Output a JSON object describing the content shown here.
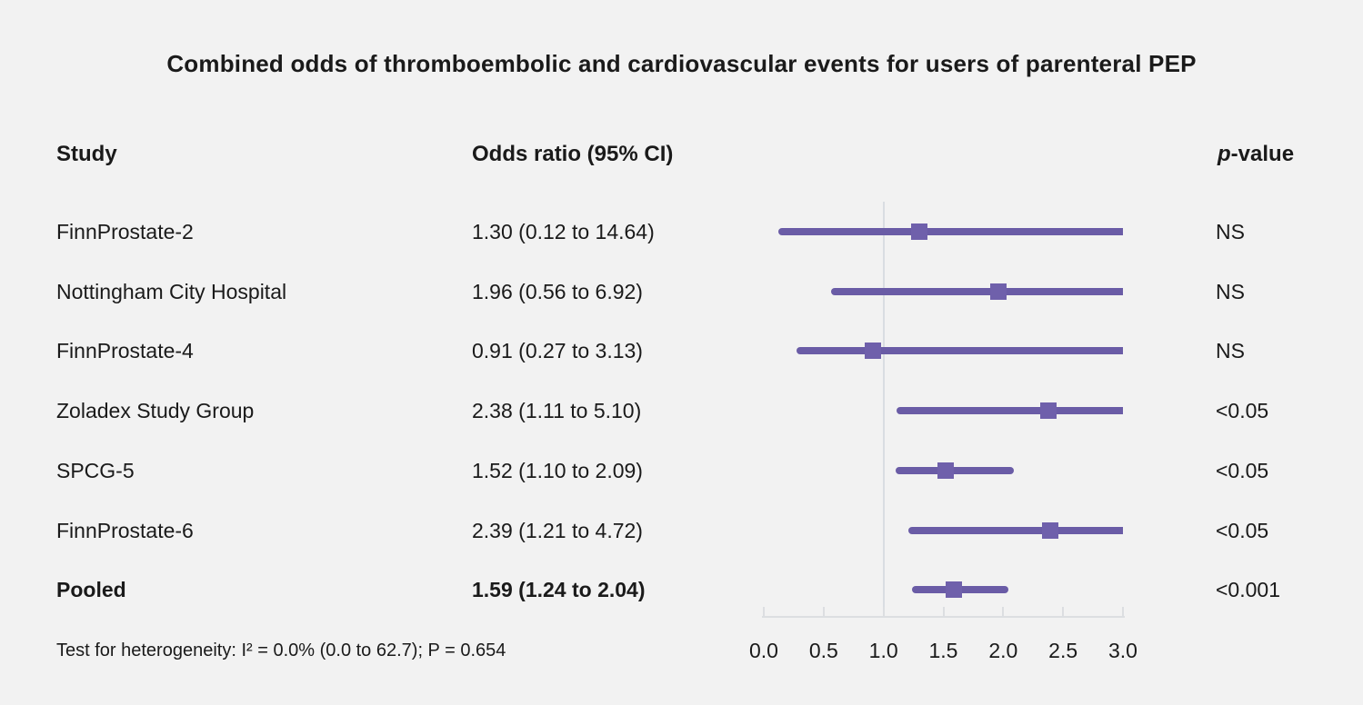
{
  "title": "Combined odds of thromboembolic and cardiovascular events for users of parenteral PEP",
  "columns": {
    "study": "Study",
    "odds": "Odds ratio (95% CI)",
    "p_italic": "p",
    "p_rest": "-value"
  },
  "footer": "Test for heterogeneity: I² = 0.0% (0.0 to 62.7); P = 0.654",
  "colors": {
    "background": "#f2f2f2",
    "text": "#1a1a1a",
    "ci_line": "#6a5ca6",
    "marker": "#6f60ab",
    "reference_line": "#d9dde2",
    "axis": "#dcdee1"
  },
  "chart_data": {
    "type": "forest",
    "title": "Combined odds of thromboembolic and cardiovascular events for users of parenteral PEP",
    "xlabel": "",
    "x_axis": {
      "range": [
        0.0,
        3.0
      ],
      "ticks": [
        0.0,
        0.5,
        1.0,
        1.5,
        2.0,
        2.5,
        3.0
      ],
      "tick_labels": [
        "0.0",
        "0.5",
        "1.0",
        "1.5",
        "2.0",
        "2.5",
        "3.0"
      ],
      "reference_line": 1.0
    },
    "rows": [
      {
        "study": "FinnProstate-2",
        "or": 1.3,
        "ci_low": 0.12,
        "ci_high": 14.64,
        "or_label": "1.30 (0.12 to 14.64)",
        "p_value": "NS",
        "bold": false
      },
      {
        "study": "Nottingham City Hospital",
        "or": 1.96,
        "ci_low": 0.56,
        "ci_high": 6.92,
        "or_label": "1.96 (0.56 to 6.92)",
        "p_value": "NS",
        "bold": false
      },
      {
        "study": "FinnProstate-4",
        "or": 0.91,
        "ci_low": 0.27,
        "ci_high": 3.13,
        "or_label": "0.91 (0.27 to 3.13)",
        "p_value": "NS",
        "bold": false
      },
      {
        "study": "Zoladex Study Group",
        "or": 2.38,
        "ci_low": 1.11,
        "ci_high": 5.1,
        "or_label": "2.38 (1.11 to 5.10)",
        "p_value": "<0.05",
        "bold": false
      },
      {
        "study": "SPCG-5",
        "or": 1.52,
        "ci_low": 1.1,
        "ci_high": 2.09,
        "or_label": "1.52 (1.10 to 2.09)",
        "p_value": "<0.05",
        "bold": false
      },
      {
        "study": "FinnProstate-6",
        "or": 2.39,
        "ci_low": 1.21,
        "ci_high": 4.72,
        "or_label": "2.39 (1.21 to 4.72)",
        "p_value": "<0.05",
        "bold": false
      },
      {
        "study": "Pooled",
        "or": 1.59,
        "ci_low": 1.24,
        "ci_high": 2.04,
        "or_label": "1.59 (1.24 to 2.04)",
        "p_value": "<0.001",
        "bold": true
      }
    ]
  }
}
